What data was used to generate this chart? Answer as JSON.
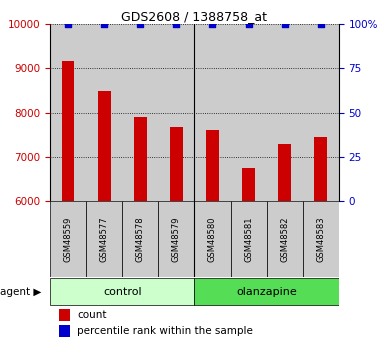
{
  "title": "GDS2608 / 1388758_at",
  "samples": [
    "GSM48559",
    "GSM48577",
    "GSM48578",
    "GSM48579",
    "GSM48580",
    "GSM48581",
    "GSM48582",
    "GSM48583"
  ],
  "counts": [
    9170,
    8500,
    7900,
    7680,
    7610,
    6750,
    7300,
    7450
  ],
  "percentile_ranks": [
    100,
    100,
    100,
    100,
    100,
    100,
    100,
    100
  ],
  "groups": [
    "control",
    "control",
    "control",
    "control",
    "olanzapine",
    "olanzapine",
    "olanzapine",
    "olanzapine"
  ],
  "group_colors": {
    "control": "#ccffcc",
    "olanzapine": "#55dd55"
  },
  "bar_color": "#cc0000",
  "dot_color": "#0000cc",
  "ylim_left": [
    6000,
    10000
  ],
  "ylim_right": [
    0,
    100
  ],
  "yticks_left": [
    6000,
    7000,
    8000,
    9000,
    10000
  ],
  "yticks_right": [
    0,
    25,
    50,
    75,
    100
  ],
  "yticklabels_right": [
    "0",
    "25",
    "50",
    "75",
    "100%"
  ],
  "left_tick_color": "#cc0000",
  "right_tick_color": "#0000cc",
  "col_bg_color": "#cccccc",
  "legend_count_label": "count",
  "legend_percentile_label": "percentile rank within the sample"
}
